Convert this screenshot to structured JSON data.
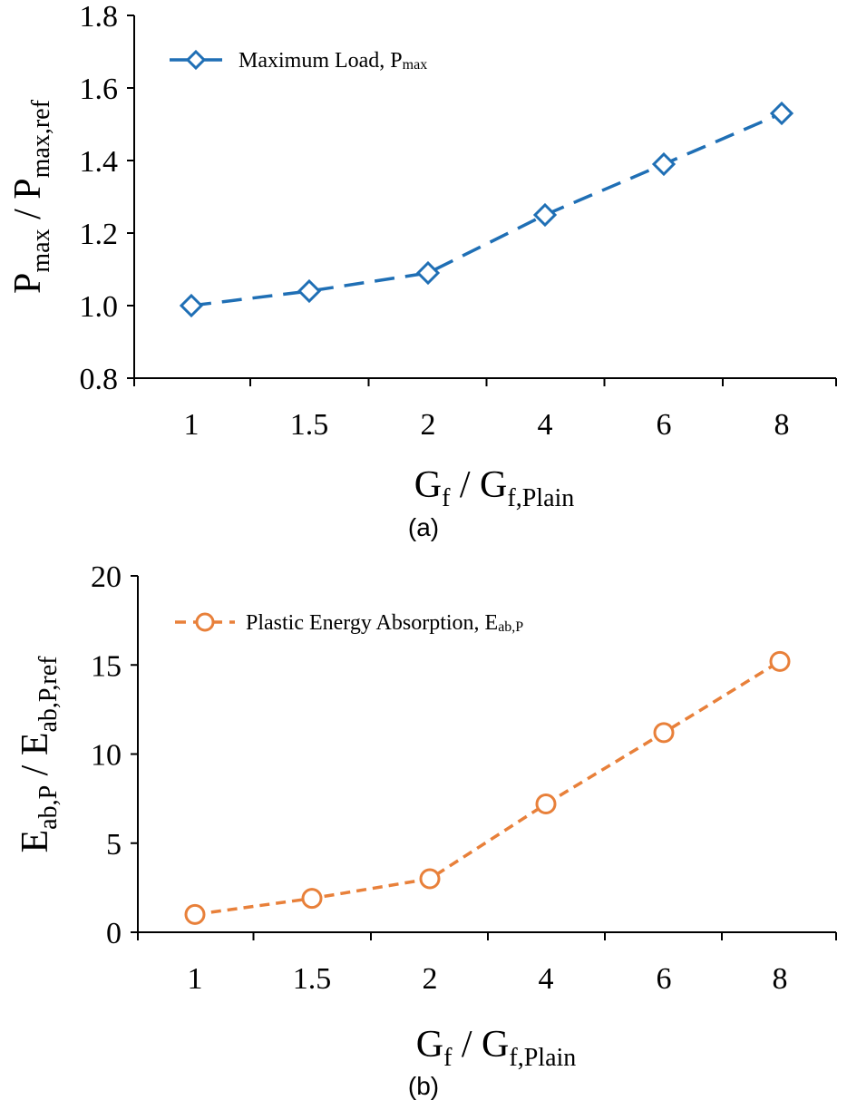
{
  "chart_data": [
    {
      "type": "line",
      "panel_label": "(a)",
      "categories": [
        "1",
        "1.5",
        "2",
        "4",
        "6",
        "8"
      ],
      "ylim": [
        0.8,
        1.8
      ],
      "yticks": [
        "0.8",
        "1.0",
        "1.2",
        "1.4",
        "1.6",
        "1.8"
      ],
      "ylabel": {
        "main": "P",
        "sub": "max",
        "sep": " / P",
        "sub2": "max,ref"
      },
      "xlabel": {
        "main": "G",
        "sub": "f",
        "sep": " / G",
        "sub2": "f,Plain"
      },
      "series": [
        {
          "name": "Maximum Load, P",
          "name_sub": "max",
          "values": [
            1.0,
            1.04,
            1.09,
            1.25,
            1.39,
            1.53
          ],
          "color": "#1f6fb5",
          "marker": "diamond",
          "line": "long-dash"
        }
      ],
      "legend": "top-left",
      "grid": false
    },
    {
      "type": "line",
      "panel_label": "(b)",
      "categories": [
        "1",
        "1.5",
        "2",
        "4",
        "6",
        "8"
      ],
      "ylim": [
        0,
        20
      ],
      "yticks": [
        "0",
        "5",
        "10",
        "15",
        "20"
      ],
      "ylabel": {
        "main": "E",
        "sub": "ab,P",
        "sep": " / E",
        "sub2": "ab,P,ref"
      },
      "xlabel": {
        "main": "G",
        "sub": "f",
        "sep": " / G",
        "sub2": "f,Plain"
      },
      "series": [
        {
          "name": "Plastic Energy Absorption, E",
          "name_sub": "ab,P",
          "values": [
            1.0,
            1.9,
            3.0,
            7.2,
            11.2,
            15.2
          ],
          "color": "#e8803a",
          "marker": "circle",
          "line": "short-dash"
        }
      ],
      "legend": "top-left",
      "grid": false
    }
  ]
}
